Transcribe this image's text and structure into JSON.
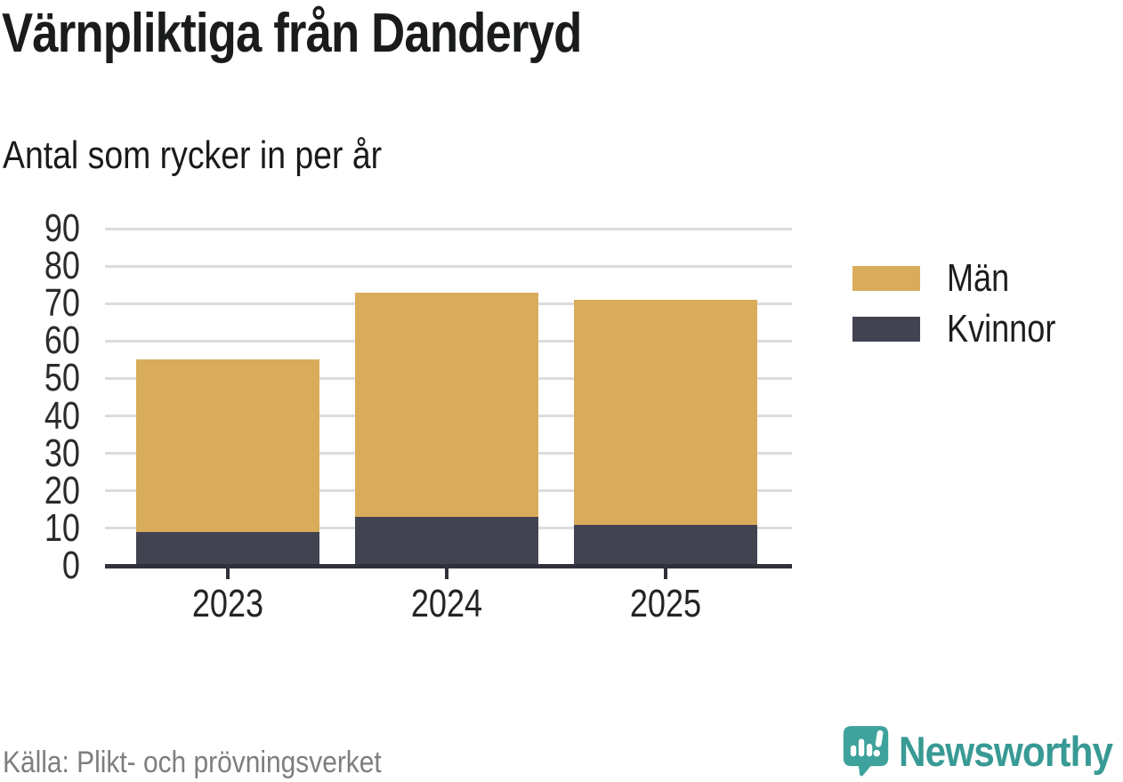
{
  "header": {
    "title": "Värnpliktiga från Danderyd",
    "subtitle": "Antal som rycker in per år"
  },
  "chart_data": {
    "type": "bar",
    "stacked": true,
    "title": "Värnpliktiga från Danderyd",
    "subtitle": "Antal som rycker in per år",
    "categories": [
      "2023",
      "2024",
      "2025"
    ],
    "series": [
      {
        "name": "Kvinnor",
        "color": "#424351",
        "values": [
          9,
          13,
          11
        ]
      },
      {
        "name": "Män",
        "color": "#D9AC5B",
        "values": [
          46,
          60,
          60
        ]
      }
    ],
    "totals": [
      55,
      73,
      71
    ],
    "xlabel": "",
    "ylabel": "",
    "ylim": [
      0,
      90
    ],
    "y_ticks": [
      0,
      10,
      20,
      30,
      40,
      50,
      60,
      70,
      80,
      90
    ],
    "grid": true,
    "gridline_color": "#dcdcdc",
    "axis_color": "#30313a",
    "legend_position": "right"
  },
  "legend": {
    "items": [
      {
        "label": "Män",
        "color": "#D9AC5B"
      },
      {
        "label": "Kvinnor",
        "color": "#424351"
      }
    ]
  },
  "footer": {
    "source": "Källa: Plikt- och prövningsverket",
    "brand": "Newsworthy",
    "brand_color": "#389a94",
    "brand_icon": "newsworthy-speech-bubble-chart-icon"
  }
}
